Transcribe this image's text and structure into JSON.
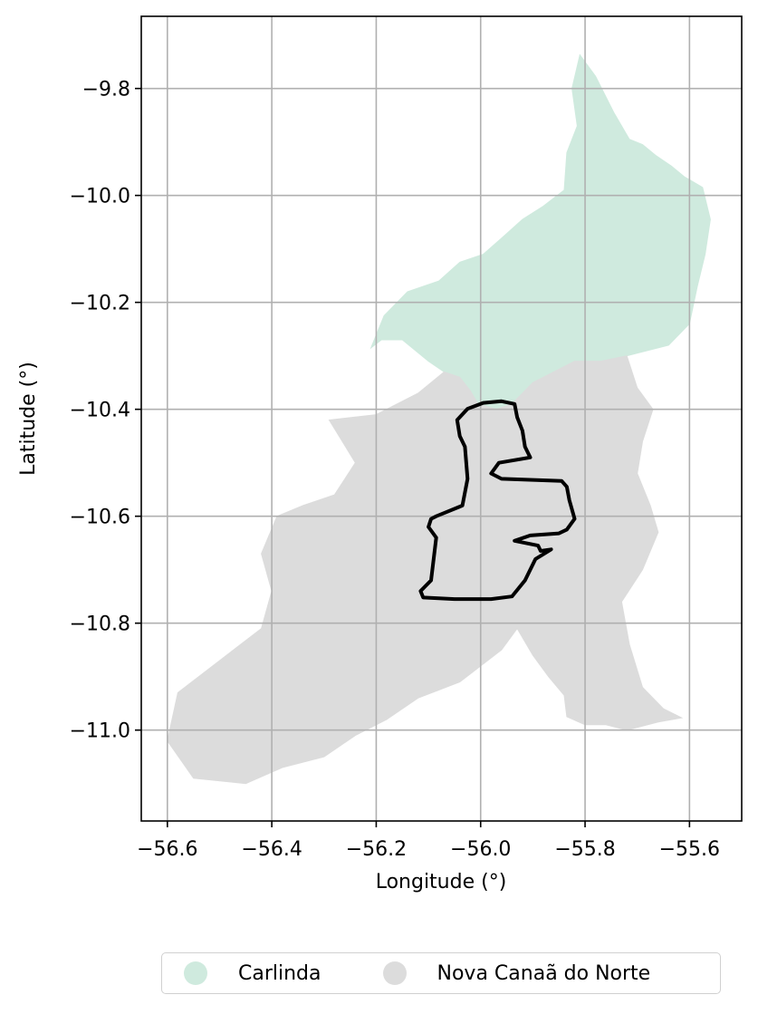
{
  "map": {
    "xlabel": "Longitude (°)",
    "ylabel": "Latitude (°)",
    "xlim": [
      -56.65,
      -55.5
    ],
    "ylim": [
      -11.17,
      -9.665
    ],
    "grid": true,
    "x_ticks": [
      {
        "value": -56.6,
        "label": "−56.6"
      },
      {
        "value": -56.4,
        "label": "−56.4"
      },
      {
        "value": -56.2,
        "label": "−56.2"
      },
      {
        "value": -56.0,
        "label": "−56.0"
      },
      {
        "value": -55.8,
        "label": "−55.8"
      },
      {
        "value": -55.6,
        "label": "−55.6"
      }
    ],
    "y_ticks": [
      {
        "value": -9.8,
        "label": "−9.8"
      },
      {
        "value": -10.0,
        "label": "−10.0"
      },
      {
        "value": -10.2,
        "label": "−10.2"
      },
      {
        "value": -10.4,
        "label": "−10.4"
      },
      {
        "value": -10.6,
        "label": "−10.6"
      },
      {
        "value": -10.8,
        "label": "−10.8"
      },
      {
        "value": -11.0,
        "label": "−11.0"
      }
    ],
    "regions": [
      {
        "name": "Carlinda",
        "color": "#cfeade",
        "coords": [
          [
            -55.81,
            -9.737
          ],
          [
            -55.78,
            -9.777
          ],
          [
            -55.745,
            -9.845
          ],
          [
            -55.715,
            -9.895
          ],
          [
            -55.69,
            -9.905
          ],
          [
            -55.665,
            -9.925
          ],
          [
            -55.635,
            -9.945
          ],
          [
            -55.61,
            -9.965
          ],
          [
            -55.575,
            -9.985
          ],
          [
            -55.56,
            -10.045
          ],
          [
            -55.57,
            -10.11
          ],
          [
            -55.585,
            -10.17
          ],
          [
            -55.6,
            -10.24
          ],
          [
            -55.64,
            -10.28
          ],
          [
            -55.72,
            -10.3
          ],
          [
            -55.77,
            -10.31
          ],
          [
            -55.82,
            -10.31
          ],
          [
            -55.86,
            -10.33
          ],
          [
            -55.9,
            -10.35
          ],
          [
            -55.94,
            -10.39
          ],
          [
            -55.97,
            -10.4
          ],
          [
            -56.005,
            -10.39
          ],
          [
            -56.02,
            -10.365
          ],
          [
            -56.04,
            -10.34
          ],
          [
            -56.07,
            -10.33
          ],
          [
            -56.1,
            -10.31
          ],
          [
            -56.15,
            -10.27
          ],
          [
            -56.17,
            -10.27
          ],
          [
            -56.19,
            -10.27
          ],
          [
            -56.21,
            -10.285
          ],
          [
            -56.185,
            -10.225
          ],
          [
            -56.14,
            -10.18
          ],
          [
            -56.08,
            -10.16
          ],
          [
            -56.04,
            -10.125
          ],
          [
            -55.995,
            -10.11
          ],
          [
            -55.96,
            -10.08
          ],
          [
            -55.92,
            -10.045
          ],
          [
            -55.88,
            -10.02
          ],
          [
            -55.84,
            -9.99
          ],
          [
            -55.835,
            -9.92
          ],
          [
            -55.815,
            -9.87
          ],
          [
            -55.825,
            -9.8
          ]
        ]
      },
      {
        "name": "Nova Canaã do Norte",
        "color": "#dcdcdc",
        "coords": [
          [
            -55.9,
            -10.35
          ],
          [
            -55.86,
            -10.33
          ],
          [
            -55.82,
            -10.31
          ],
          [
            -55.77,
            -10.31
          ],
          [
            -55.72,
            -10.3
          ],
          [
            -55.7,
            -10.36
          ],
          [
            -55.67,
            -10.4
          ],
          [
            -55.69,
            -10.46
          ],
          [
            -55.7,
            -10.52
          ],
          [
            -55.675,
            -10.58
          ],
          [
            -55.66,
            -10.63
          ],
          [
            -55.69,
            -10.7
          ],
          [
            -55.73,
            -10.76
          ],
          [
            -55.715,
            -10.84
          ],
          [
            -55.69,
            -10.92
          ],
          [
            -55.65,
            -10.96
          ],
          [
            -55.615,
            -10.977
          ],
          [
            -55.66,
            -10.985
          ],
          [
            -55.72,
            -11.0
          ],
          [
            -55.76,
            -10.99
          ],
          [
            -55.8,
            -10.99
          ],
          [
            -55.835,
            -10.975
          ],
          [
            -55.84,
            -10.935
          ],
          [
            -55.87,
            -10.9
          ],
          [
            -55.9,
            -10.86
          ],
          [
            -55.93,
            -10.81
          ],
          [
            -55.96,
            -10.85
          ],
          [
            -56.04,
            -10.91
          ],
          [
            -56.12,
            -10.94
          ],
          [
            -56.18,
            -10.98
          ],
          [
            -56.24,
            -11.01
          ],
          [
            -56.3,
            -11.05
          ],
          [
            -56.38,
            -11.07
          ],
          [
            -56.45,
            -11.1
          ],
          [
            -56.55,
            -11.09
          ],
          [
            -56.6,
            -11.02
          ],
          [
            -56.58,
            -10.93
          ],
          [
            -56.5,
            -10.87
          ],
          [
            -56.42,
            -10.81
          ],
          [
            -56.4,
            -10.74
          ],
          [
            -56.42,
            -10.67
          ],
          [
            -56.39,
            -10.6
          ],
          [
            -56.34,
            -10.58
          ],
          [
            -56.28,
            -10.56
          ],
          [
            -56.24,
            -10.5
          ],
          [
            -56.29,
            -10.42
          ],
          [
            -56.2,
            -10.41
          ],
          [
            -56.12,
            -10.37
          ],
          [
            -56.07,
            -10.33
          ],
          [
            -56.04,
            -10.34
          ],
          [
            -56.02,
            -10.365
          ],
          [
            -56.005,
            -10.39
          ],
          [
            -55.97,
            -10.4
          ],
          [
            -55.94,
            -10.39
          ]
        ]
      }
    ],
    "outline": {
      "color": "#000000",
      "coords": [
        [
          -56.025,
          -10.399
        ],
        [
          -55.995,
          -10.388
        ],
        [
          -55.96,
          -10.385
        ],
        [
          -55.935,
          -10.39
        ],
        [
          -55.93,
          -10.415
        ],
        [
          -55.92,
          -10.44
        ],
        [
          -55.915,
          -10.47
        ],
        [
          -55.905,
          -10.49
        ],
        [
          -55.965,
          -10.5
        ],
        [
          -55.98,
          -10.52
        ],
        [
          -55.96,
          -10.53
        ],
        [
          -55.845,
          -10.534
        ],
        [
          -55.835,
          -10.545
        ],
        [
          -55.83,
          -10.57
        ],
        [
          -55.82,
          -10.605
        ],
        [
          -55.835,
          -10.625
        ],
        [
          -55.85,
          -10.632
        ],
        [
          -55.905,
          -10.636
        ],
        [
          -55.935,
          -10.646
        ],
        [
          -55.89,
          -10.655
        ],
        [
          -55.885,
          -10.665
        ],
        [
          -55.865,
          -10.662
        ],
        [
          -55.895,
          -10.68
        ],
        [
          -55.915,
          -10.72
        ],
        [
          -55.94,
          -10.75
        ],
        [
          -55.98,
          -10.755
        ],
        [
          -56.05,
          -10.755
        ],
        [
          -56.11,
          -10.752
        ],
        [
          -56.115,
          -10.74
        ],
        [
          -56.105,
          -10.73
        ],
        [
          -56.095,
          -10.72
        ],
        [
          -56.085,
          -10.64
        ],
        [
          -56.1,
          -10.62
        ],
        [
          -56.095,
          -10.605
        ],
        [
          -56.085,
          -10.6
        ],
        [
          -56.035,
          -10.58
        ],
        [
          -56.025,
          -10.53
        ],
        [
          -56.03,
          -10.47
        ],
        [
          -56.04,
          -10.45
        ],
        [
          -56.045,
          -10.42
        ]
      ]
    }
  },
  "legend": {
    "items": [
      {
        "label": "Carlinda",
        "color": "#cfeade"
      },
      {
        "label": "Nova Canaã do Norte",
        "color": "#dcdcdc"
      }
    ]
  }
}
